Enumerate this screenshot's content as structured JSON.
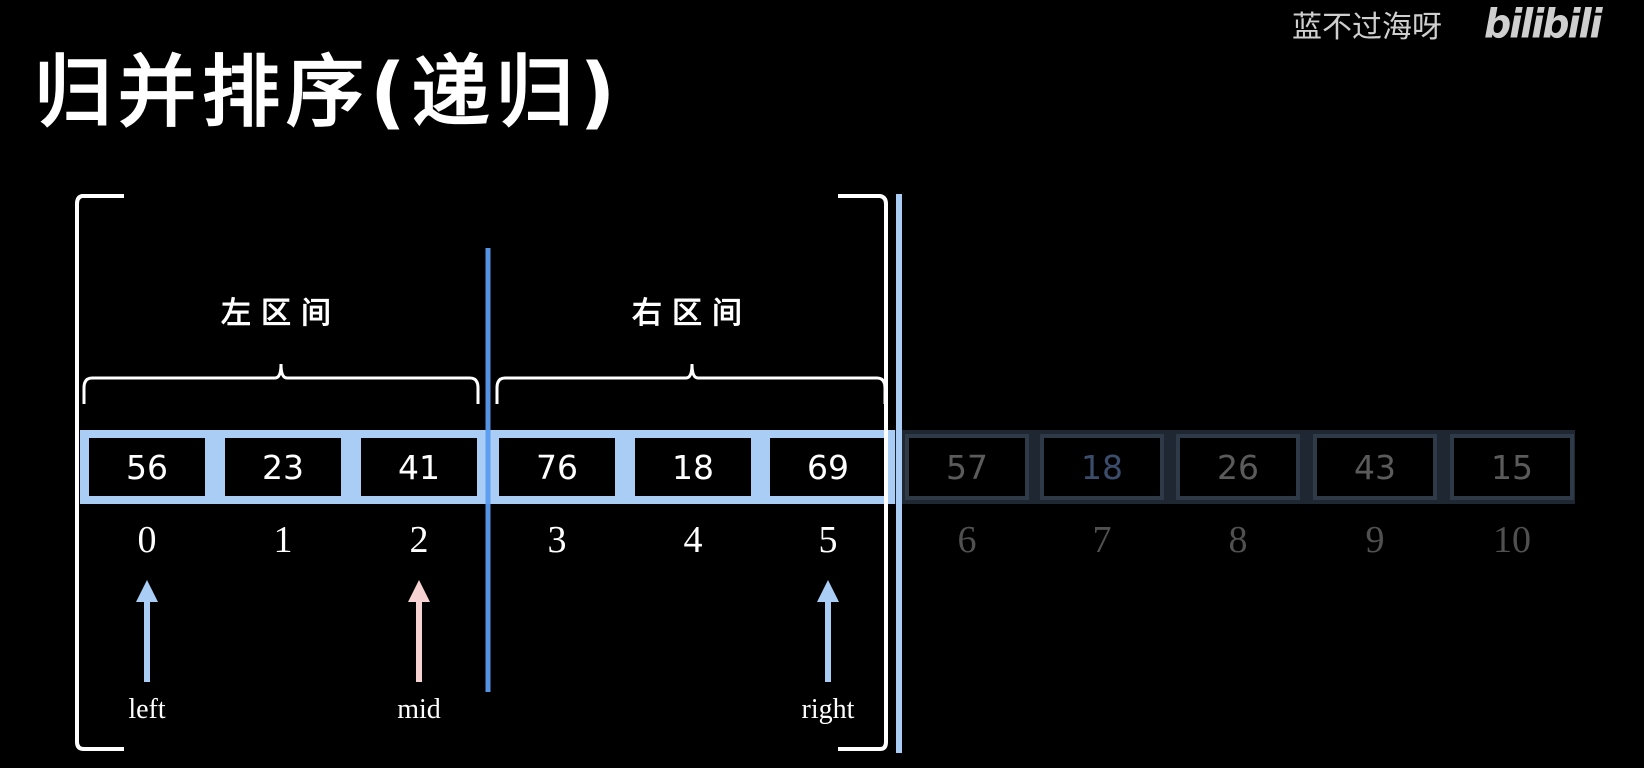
{
  "title": "归并排序(递归)",
  "watermark": {
    "author": "蓝不过海呀",
    "logo": "bilibili"
  },
  "labels": {
    "left_interval": "左区间",
    "right_interval": "右区间"
  },
  "array": {
    "values": [
      "56",
      "23",
      "41",
      "76",
      "18",
      "69",
      "57",
      "18",
      "26",
      "43",
      "15"
    ],
    "indices": [
      "0",
      "1",
      "2",
      "3",
      "4",
      "5",
      "6",
      "7",
      "8",
      "9",
      "10"
    ],
    "active_range": [
      0,
      5
    ],
    "mid_split_after": 2
  },
  "pointers": [
    {
      "label": "left",
      "index": 0,
      "color": "#a9cdf4"
    },
    {
      "label": "mid",
      "index": 2,
      "color": "#f6d2d2"
    },
    {
      "label": "right",
      "index": 5,
      "color": "#a9cdf4"
    }
  ],
  "colors": {
    "active_cell": "#a9cdf4",
    "divider": "#5b9cf0",
    "inactive_cell": "#2f3a48",
    "mid_arrow": "#f6d2d2"
  }
}
